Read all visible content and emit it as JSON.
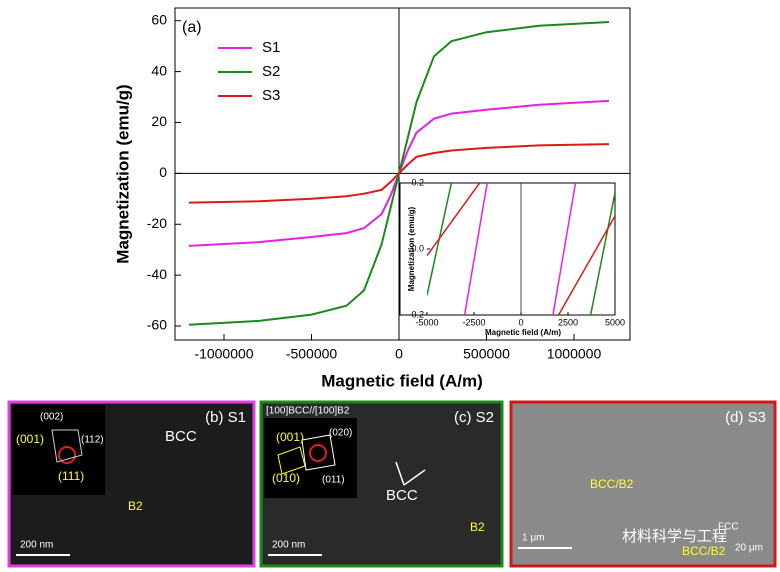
{
  "chart_data": [
    {
      "type": "line",
      "annotation": "(a)",
      "xlabel": "Magnetic field (A/m)",
      "ylabel": "Magnetization (emu/g)",
      "x": [
        -1200000,
        -800000,
        -500000,
        -300000,
        -200000,
        -100000,
        -50000,
        0,
        50000,
        100000,
        200000,
        300000,
        500000,
        800000,
        1200000
      ],
      "series": [
        {
          "name": "S1",
          "color": "#e81fe8",
          "values": [
            -28.5,
            -27,
            -25,
            -23.5,
            -21.5,
            -16,
            -9,
            0,
            9,
            16,
            21.5,
            23.5,
            25,
            27,
            28.5
          ]
        },
        {
          "name": "S2",
          "color": "#1a8a1a",
          "values": [
            -59.5,
            -58,
            -55.5,
            -52,
            -46,
            -28,
            -14,
            0,
            14,
            28,
            46,
            52,
            55.5,
            58,
            59.5
          ]
        },
        {
          "name": "S3",
          "color": "#dd1a1a",
          "values": [
            -11.5,
            -11,
            -10,
            -9,
            -8,
            -6.5,
            -3.5,
            0,
            3.5,
            6.5,
            8,
            9,
            10,
            11,
            11.5
          ]
        }
      ],
      "xlim": [
        -1280000,
        1320000
      ],
      "xticks": [
        -1000000,
        -500000,
        0,
        500000,
        1000000
      ],
      "ylim": [
        -65.5,
        65
      ],
      "yticks": [
        -60,
        -40,
        -20,
        0,
        20,
        40,
        60
      ],
      "legend": "upper left"
    },
    {
      "type": "line",
      "xlabel": "Magnetic field (A/m)",
      "ylabel": "Magnetization (emu/g)",
      "series": [
        {
          "color": "#e81fe8",
          "x": [
            -3000,
            -1800,
            0,
            1700,
            2900
          ],
          "values": [
            -0.2,
            0.2,
            null,
            -0.2,
            0.2
          ]
        },
        {
          "color": "#1a8a1a",
          "x": [
            -5000,
            -3700,
            0,
            3700,
            5000
          ],
          "values": [
            -0.14,
            0.2,
            null,
            -0.2,
            0.17
          ]
        },
        {
          "color": "#dd1a1a",
          "x": [
            -5000,
            -2200,
            0,
            2000,
            5000
          ],
          "values": [
            -0.02,
            0.2,
            null,
            -0.2,
            0.1
          ]
        }
      ],
      "xlim": [
        -5000,
        5000
      ],
      "xticks": [
        -5000,
        -2500,
        0,
        2500,
        5000
      ],
      "ylim": [
        -0.2,
        0.2
      ],
      "yticks": [
        -0.2,
        {
          "value": 0,
          "label": "0.0"
        },
        0.2
      ]
    }
  ],
  "panels": [
    {
      "title": "(b) S1",
      "labels": [
        "BCC",
        "B2",
        "200 nm",
        "(002)",
        "(112)",
        "(001)",
        "(111)"
      ]
    },
    {
      "title": "(c) S2",
      "labels": [
        "[100]BCC//[100]B2",
        "(001)",
        "(020)",
        "(010)",
        "(011)",
        "BCC",
        "B2",
        "200 nm"
      ]
    },
    {
      "title": "(d) S3",
      "labels": [
        "BCC/B2",
        "1 μm",
        "材料科学与工程",
        "FCC",
        "BCC/B2",
        "20 μm"
      ]
    }
  ]
}
